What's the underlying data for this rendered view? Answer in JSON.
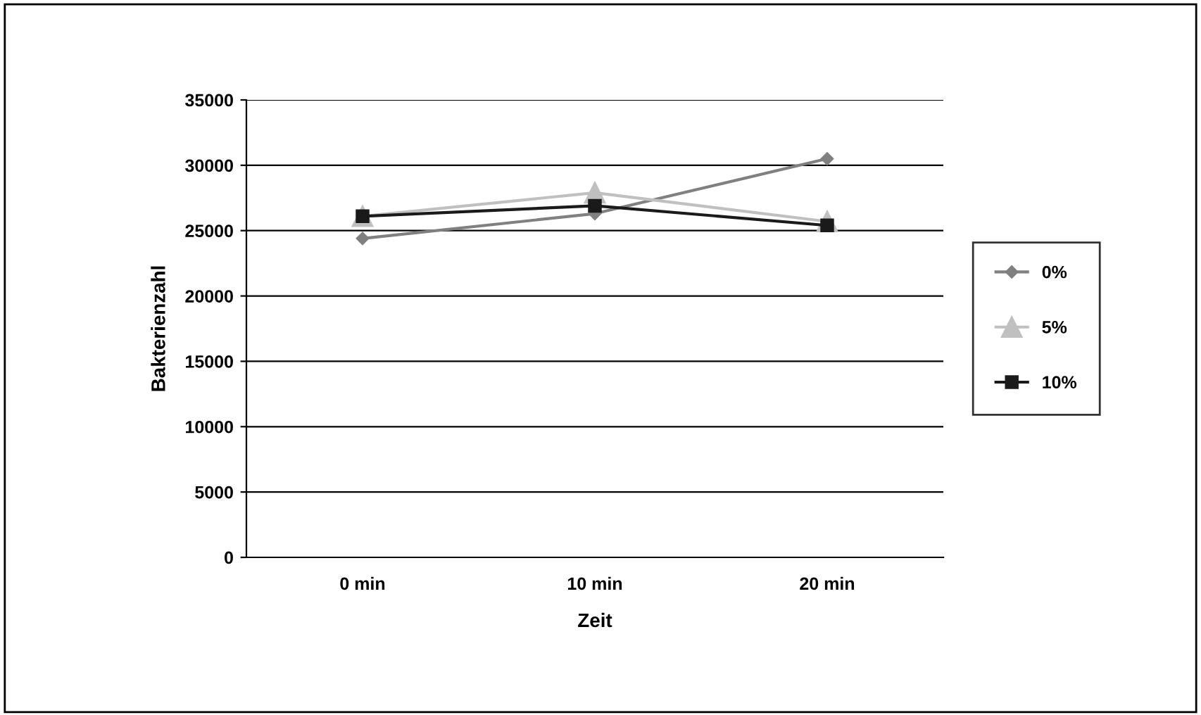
{
  "chart_data": {
    "type": "line",
    "xlabel": "Zeit",
    "ylabel": "Bakterienzahl",
    "categories": [
      "0 min",
      "10 min",
      "20 min"
    ],
    "series": [
      {
        "name": "0%",
        "color": "#808080",
        "marker": "diamond",
        "values": [
          24400,
          26300,
          30500
        ]
      },
      {
        "name": "5%",
        "color": "#c0c0c0",
        "marker": "triangle",
        "values": [
          26100,
          27900,
          25700
        ]
      },
      {
        "name": "10%",
        "color": "#1a1a1a",
        "marker": "square",
        "values": [
          26100,
          26900,
          25400
        ]
      }
    ],
    "ylim": [
      0,
      35000
    ],
    "yticks": [
      0,
      5000,
      10000,
      15000,
      20000,
      25000,
      30000,
      35000
    ],
    "grid": "y",
    "legend": "right",
    "line_style": "solid"
  }
}
